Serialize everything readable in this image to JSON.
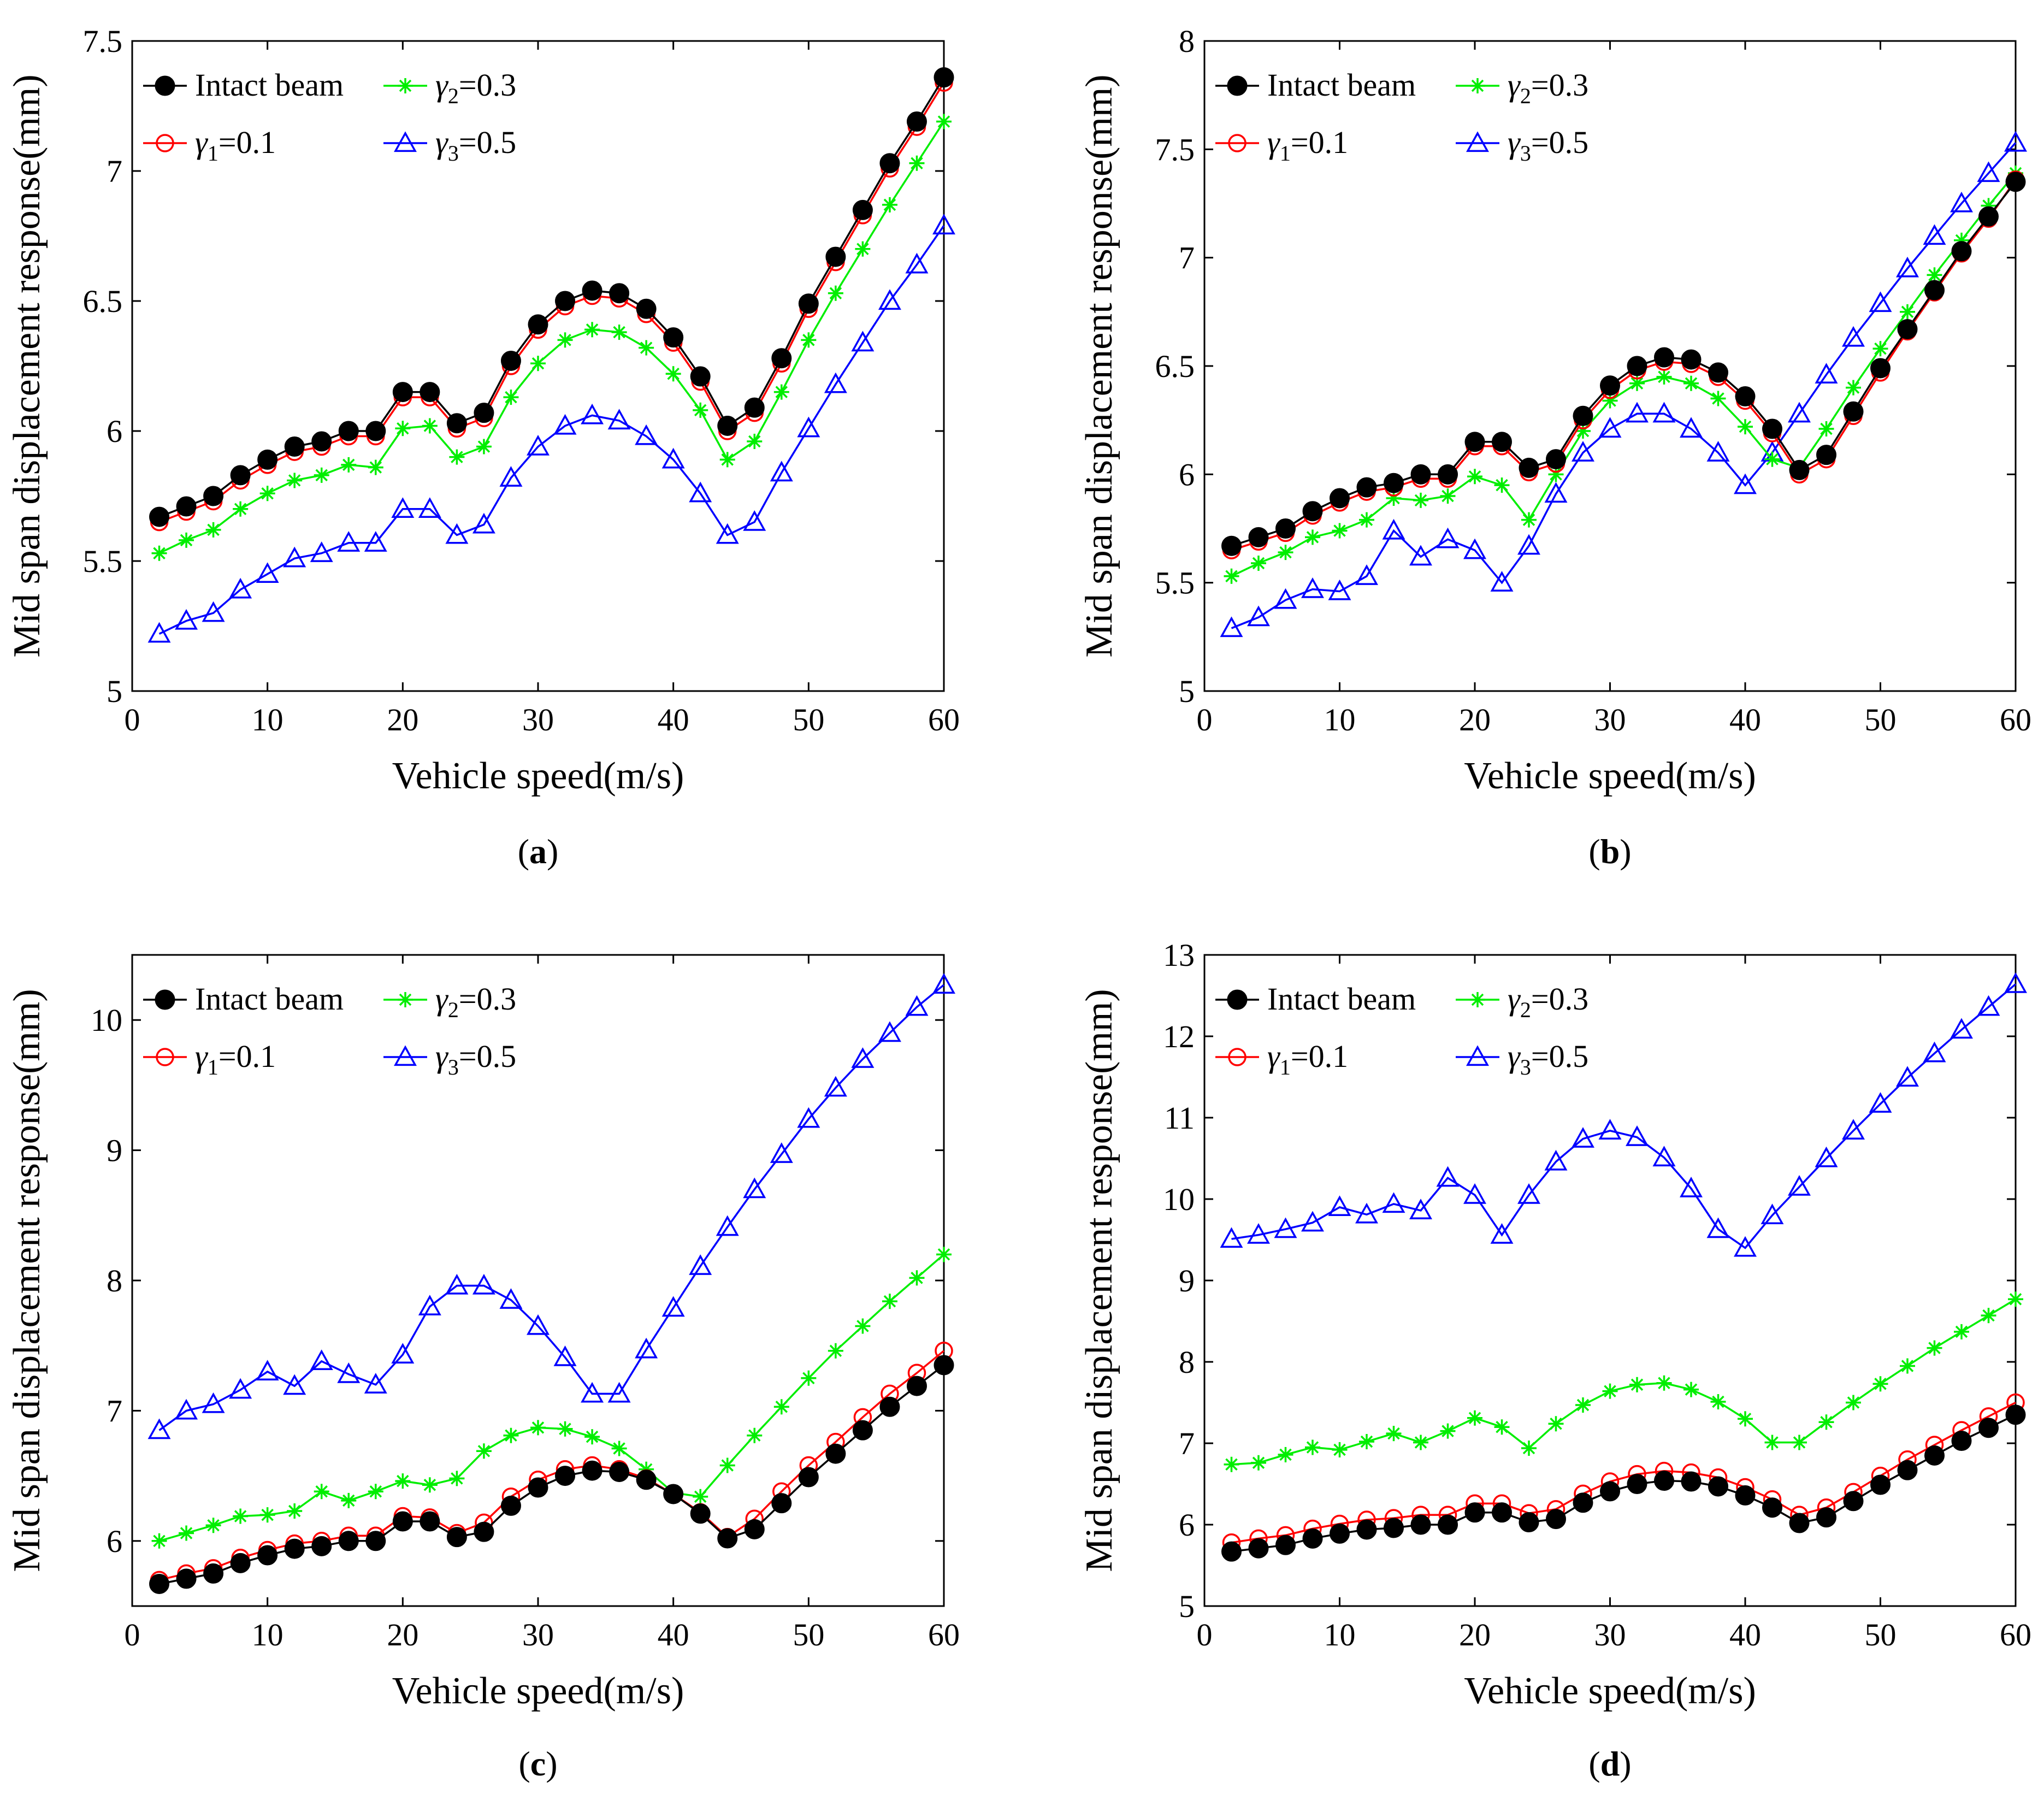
{
  "chart_data": [
    {
      "type": "line",
      "caption_letter": "a",
      "xlabel": "Vehicle speed(m/s)",
      "ylabel": "Mid span displacement response(mm)",
      "xlim": [
        0,
        60
      ],
      "ylim": [
        5,
        7.5
      ],
      "xticks": [
        0,
        10,
        20,
        30,
        40,
        50,
        60
      ],
      "xtick_labels": [
        "0",
        "10",
        "20",
        "30",
        "40",
        "50",
        "60"
      ],
      "yticks": [
        5,
        5.5,
        6,
        6.5,
        7,
        7.5
      ],
      "ytick_labels": [
        "5",
        "5.5",
        "6",
        "6.5",
        "7",
        "7.5"
      ],
      "legend_placement": "top-left",
      "x": [
        2,
        4,
        6,
        8,
        10,
        12,
        14,
        16,
        18,
        20,
        22,
        24,
        26,
        28,
        30,
        32,
        34,
        36,
        38,
        40,
        42,
        44,
        46,
        48,
        50,
        52,
        54,
        56,
        58,
        60
      ],
      "series": [
        {
          "name": "Intact beam",
          "legend_symbol": "",
          "legend_subscript": "",
          "legend_suffix": "",
          "color": "#000000",
          "marker": "filled-circle",
          "values": [
            5.67,
            5.71,
            5.75,
            5.83,
            5.89,
            5.94,
            5.96,
            6.0,
            6.0,
            6.15,
            6.15,
            6.03,
            6.07,
            6.27,
            6.41,
            6.5,
            6.54,
            6.53,
            6.47,
            6.36,
            6.21,
            6.02,
            6.09,
            6.28,
            6.49,
            6.67,
            6.85,
            7.03,
            7.19,
            7.36
          ]
        },
        {
          "name": "γ1=0.1",
          "legend_symbol": "γ",
          "legend_subscript": "1",
          "legend_suffix": "=0.1",
          "color": "#ff0000",
          "marker": "open-circle",
          "values": [
            5.65,
            5.69,
            5.73,
            5.81,
            5.87,
            5.92,
            5.94,
            5.98,
            5.98,
            6.13,
            6.13,
            6.01,
            6.05,
            6.25,
            6.39,
            6.48,
            6.52,
            6.51,
            6.45,
            6.34,
            6.19,
            6.0,
            6.07,
            6.26,
            6.47,
            6.65,
            6.83,
            7.01,
            7.17,
            7.34
          ]
        },
        {
          "name": "γ2=0.3",
          "legend_symbol": "γ",
          "legend_subscript": "2",
          "legend_suffix": "=0.3",
          "color": "#00ee00",
          "marker": "asterisk",
          "values": [
            5.53,
            5.58,
            5.62,
            5.7,
            5.76,
            5.81,
            5.83,
            5.87,
            5.86,
            6.01,
            6.02,
            5.9,
            5.94,
            6.13,
            6.26,
            6.35,
            6.39,
            6.38,
            6.32,
            6.22,
            6.08,
            5.89,
            5.96,
            6.15,
            6.35,
            6.53,
            6.7,
            6.87,
            7.03,
            7.19
          ]
        },
        {
          "name": "γ3=0.5",
          "legend_symbol": "γ",
          "legend_subscript": "3",
          "legend_suffix": "=0.5",
          "color": "#0000ff",
          "marker": "open-triangle",
          "values": [
            5.22,
            5.27,
            5.3,
            5.39,
            5.45,
            5.51,
            5.53,
            5.57,
            5.57,
            5.7,
            5.7,
            5.6,
            5.64,
            5.82,
            5.94,
            6.02,
            6.06,
            6.04,
            5.98,
            5.89,
            5.76,
            5.6,
            5.65,
            5.84,
            6.01,
            6.18,
            6.34,
            6.5,
            6.64,
            6.79
          ]
        }
      ]
    },
    {
      "type": "line",
      "caption_letter": "b",
      "xlabel": "Vehicle speed(m/s)",
      "ylabel": "Mid span displacement response(mm)",
      "xlim": [
        0,
        60
      ],
      "ylim": [
        5,
        8
      ],
      "xticks": [
        0,
        10,
        20,
        30,
        40,
        50,
        60
      ],
      "xtick_labels": [
        "0",
        "10",
        "20",
        "30",
        "40",
        "50",
        "60"
      ],
      "yticks": [
        5,
        5.5,
        6,
        6.5,
        7,
        7.5,
        8
      ],
      "ytick_labels": [
        "5",
        "5.5",
        "6",
        "6.5",
        "7",
        "7.5",
        "8"
      ],
      "legend_placement": "top-left",
      "x": [
        2,
        4,
        6,
        8,
        10,
        12,
        14,
        16,
        18,
        20,
        22,
        24,
        26,
        28,
        30,
        32,
        34,
        36,
        38,
        40,
        42,
        44,
        46,
        48,
        50,
        52,
        54,
        56,
        58,
        60
      ],
      "series": [
        {
          "name": "Intact beam",
          "legend_symbol": "",
          "legend_subscript": "",
          "legend_suffix": "",
          "color": "#000000",
          "marker": "filled-circle",
          "values": [
            5.67,
            5.71,
            5.75,
            5.83,
            5.89,
            5.94,
            5.96,
            6.0,
            6.0,
            6.15,
            6.15,
            6.03,
            6.07,
            6.27,
            6.41,
            6.5,
            6.54,
            6.53,
            6.47,
            6.36,
            6.21,
            6.02,
            6.09,
            6.29,
            6.49,
            6.67,
            6.85,
            7.03,
            7.19,
            7.35
          ]
        },
        {
          "name": "γ1=0.1",
          "legend_symbol": "γ",
          "legend_subscript": "1",
          "legend_suffix": "=0.1",
          "color": "#ff0000",
          "marker": "open-circle",
          "values": [
            5.65,
            5.69,
            5.73,
            5.81,
            5.87,
            5.92,
            5.94,
            5.98,
            5.98,
            6.13,
            6.13,
            6.01,
            6.05,
            6.25,
            6.39,
            6.48,
            6.52,
            6.51,
            6.45,
            6.34,
            6.19,
            6.0,
            6.07,
            6.27,
            6.47,
            6.66,
            6.84,
            7.02,
            7.18,
            7.36
          ]
        },
        {
          "name": "γ2=0.3",
          "legend_symbol": "γ",
          "legend_subscript": "2",
          "legend_suffix": "=0.3",
          "color": "#00ee00",
          "marker": "asterisk",
          "values": [
            5.53,
            5.59,
            5.64,
            5.71,
            5.74,
            5.79,
            5.89,
            5.88,
            5.9,
            5.99,
            5.95,
            5.79,
            6.0,
            6.2,
            6.34,
            6.42,
            6.45,
            6.42,
            6.35,
            6.22,
            6.07,
            6.03,
            6.21,
            6.4,
            6.58,
            6.75,
            6.92,
            7.08,
            7.24,
            7.39
          ]
        },
        {
          "name": "γ3=0.5",
          "legend_symbol": "γ",
          "legend_subscript": "3",
          "legend_suffix": "=0.5",
          "color": "#0000ff",
          "marker": "open-triangle",
          "values": [
            5.29,
            5.34,
            5.42,
            5.47,
            5.46,
            5.53,
            5.74,
            5.62,
            5.7,
            5.65,
            5.5,
            5.67,
            5.91,
            6.1,
            6.21,
            6.28,
            6.28,
            6.21,
            6.1,
            5.95,
            6.1,
            6.28,
            6.46,
            6.63,
            6.79,
            6.95,
            7.1,
            7.25,
            7.39,
            7.53
          ]
        }
      ]
    },
    {
      "type": "line",
      "caption_letter": "c",
      "xlabel": "Vehicle speed(m/s)",
      "ylabel": "Mid span displacement response(mm)",
      "xlim": [
        0,
        60
      ],
      "ylim": [
        5.5,
        10.5
      ],
      "xticks": [
        0,
        10,
        20,
        30,
        40,
        50,
        60
      ],
      "xtick_labels": [
        "0",
        "10",
        "20",
        "30",
        "40",
        "50",
        "60"
      ],
      "yticks": [
        6,
        7,
        8,
        9,
        10
      ],
      "ytick_labels": [
        "6",
        "7",
        "8",
        "9",
        "10"
      ],
      "legend_placement": "top-left",
      "x": [
        2,
        4,
        6,
        8,
        10,
        12,
        14,
        16,
        18,
        20,
        22,
        24,
        26,
        28,
        30,
        32,
        34,
        36,
        38,
        40,
        42,
        44,
        46,
        48,
        50,
        52,
        54,
        56,
        58,
        60
      ],
      "series": [
        {
          "name": "Intact beam",
          "legend_symbol": "",
          "legend_subscript": "",
          "legend_suffix": "",
          "color": "#000000",
          "marker": "filled-circle",
          "values": [
            5.67,
            5.71,
            5.75,
            5.83,
            5.89,
            5.94,
            5.96,
            6.0,
            6.0,
            6.15,
            6.15,
            6.03,
            6.07,
            6.27,
            6.41,
            6.5,
            6.54,
            6.53,
            6.47,
            6.36,
            6.21,
            6.02,
            6.09,
            6.29,
            6.49,
            6.67,
            6.85,
            7.03,
            7.19,
            7.35
          ]
        },
        {
          "name": "γ1=0.1",
          "legend_symbol": "γ",
          "legend_subscript": "1",
          "legend_suffix": "=0.1",
          "color": "#ff0000",
          "marker": "open-circle",
          "values": [
            5.7,
            5.75,
            5.79,
            5.87,
            5.93,
            5.98,
            6.0,
            6.04,
            6.04,
            6.19,
            6.18,
            6.06,
            6.14,
            6.34,
            6.47,
            6.55,
            6.58,
            6.55,
            6.48,
            6.36,
            6.22,
            6.03,
            6.17,
            6.38,
            6.58,
            6.76,
            6.95,
            7.13,
            7.29,
            7.46
          ]
        },
        {
          "name": "γ2=0.3",
          "legend_symbol": "γ",
          "legend_subscript": "2",
          "legend_suffix": "=0.3",
          "color": "#00ee00",
          "marker": "asterisk",
          "values": [
            6.0,
            6.06,
            6.12,
            6.19,
            6.2,
            6.23,
            6.38,
            6.31,
            6.38,
            6.46,
            6.43,
            6.48,
            6.69,
            6.81,
            6.87,
            6.86,
            6.8,
            6.71,
            6.55,
            6.37,
            6.34,
            6.58,
            6.81,
            7.03,
            7.25,
            7.46,
            7.65,
            7.84,
            8.02,
            8.2
          ]
        },
        {
          "name": "γ3=0.5",
          "legend_symbol": "γ",
          "legend_subscript": "3",
          "legend_suffix": "=0.5",
          "color": "#0000ff",
          "marker": "open-triangle",
          "values": [
            6.85,
            7.0,
            7.05,
            7.16,
            7.3,
            7.19,
            7.38,
            7.28,
            7.2,
            7.43,
            7.8,
            7.96,
            7.96,
            7.85,
            7.65,
            7.41,
            7.13,
            7.13,
            7.47,
            7.79,
            8.11,
            8.41,
            8.7,
            8.97,
            9.24,
            9.48,
            9.7,
            9.9,
            10.1,
            10.27
          ]
        }
      ]
    },
    {
      "type": "line",
      "caption_letter": "d",
      "xlabel": "Vehicle speed(m/s)",
      "ylabel": "Mid span displacement response(mm)",
      "xlim": [
        0,
        60
      ],
      "ylim": [
        5,
        13
      ],
      "xticks": [
        0,
        10,
        20,
        30,
        40,
        50,
        60
      ],
      "xtick_labels": [
        "0",
        "10",
        "20",
        "30",
        "40",
        "50",
        "60"
      ],
      "yticks": [
        5,
        6,
        7,
        8,
        9,
        10,
        11,
        12,
        13
      ],
      "ytick_labels": [
        "5",
        "6",
        "7",
        "8",
        "9",
        "10",
        "11",
        "12",
        "13"
      ],
      "legend_placement": "top-left",
      "x": [
        2,
        4,
        6,
        8,
        10,
        12,
        14,
        16,
        18,
        20,
        22,
        24,
        26,
        28,
        30,
        32,
        34,
        36,
        38,
        40,
        42,
        44,
        46,
        48,
        50,
        52,
        54,
        56,
        58,
        60
      ],
      "series": [
        {
          "name": "Intact beam",
          "legend_symbol": "",
          "legend_subscript": "",
          "legend_suffix": "",
          "color": "#000000",
          "marker": "filled-circle",
          "values": [
            5.67,
            5.71,
            5.75,
            5.83,
            5.89,
            5.94,
            5.96,
            6.0,
            6.0,
            6.15,
            6.15,
            6.03,
            6.07,
            6.27,
            6.41,
            6.5,
            6.54,
            6.53,
            6.47,
            6.36,
            6.21,
            6.02,
            6.09,
            6.29,
            6.49,
            6.67,
            6.85,
            7.03,
            7.19,
            7.35
          ]
        },
        {
          "name": "γ1=0.1",
          "legend_symbol": "γ",
          "legend_subscript": "1",
          "legend_suffix": "=0.1",
          "color": "#ff0000",
          "marker": "open-circle",
          "values": [
            5.78,
            5.83,
            5.87,
            5.95,
            6.01,
            6.06,
            6.08,
            6.12,
            6.12,
            6.26,
            6.26,
            6.14,
            6.19,
            6.38,
            6.53,
            6.62,
            6.66,
            6.64,
            6.58,
            6.46,
            6.31,
            6.12,
            6.21,
            6.4,
            6.6,
            6.8,
            6.98,
            7.16,
            7.33,
            7.5
          ]
        },
        {
          "name": "γ2=0.3",
          "legend_symbol": "γ",
          "legend_subscript": "2",
          "legend_suffix": "=0.3",
          "color": "#00ee00",
          "marker": "asterisk",
          "values": [
            6.74,
            6.76,
            6.86,
            6.95,
            6.92,
            7.02,
            7.12,
            7.01,
            7.15,
            7.31,
            7.2,
            6.94,
            7.24,
            7.47,
            7.64,
            7.72,
            7.74,
            7.66,
            7.51,
            7.3,
            7.01,
            7.01,
            7.26,
            7.5,
            7.73,
            7.95,
            8.17,
            8.37,
            8.57,
            8.77
          ]
        },
        {
          "name": "γ3=0.5",
          "legend_symbol": "γ",
          "legend_subscript": "3",
          "legend_suffix": "=0.5",
          "color": "#0000ff",
          "marker": "open-triangle",
          "values": [
            9.51,
            9.56,
            9.63,
            9.71,
            9.9,
            9.81,
            9.94,
            9.86,
            10.26,
            10.05,
            9.56,
            10.05,
            10.46,
            10.74,
            10.84,
            10.76,
            10.51,
            10.13,
            9.63,
            9.4,
            9.8,
            10.15,
            10.5,
            10.84,
            11.17,
            11.49,
            11.79,
            12.08,
            12.36,
            12.64
          ]
        }
      ]
    }
  ]
}
